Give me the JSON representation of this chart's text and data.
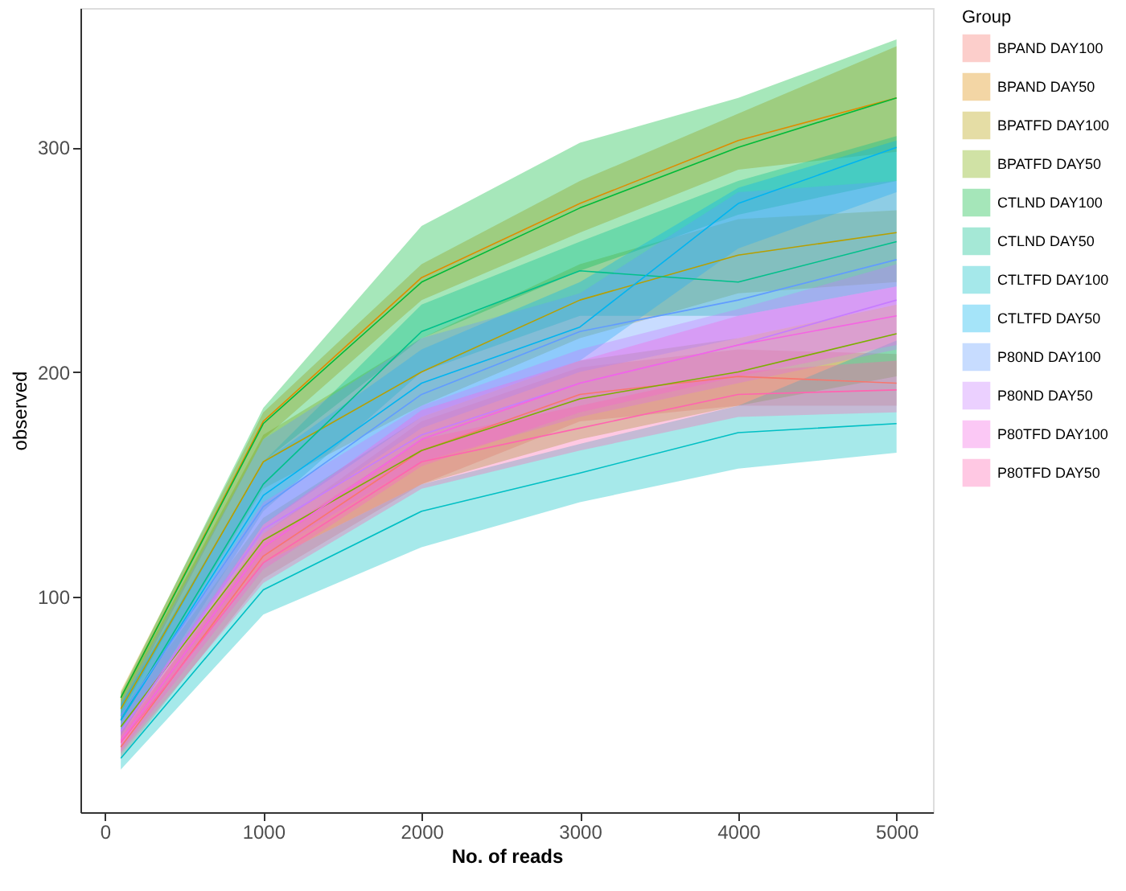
{
  "chart_data": {
    "type": "line",
    "xlabel": "No. of reads",
    "ylabel": "observed",
    "legend_title": "Group",
    "legend": "right",
    "grid": false,
    "line_style": "solid",
    "marker": "none",
    "x": [
      100,
      1000,
      2000,
      3000,
      4000,
      5000
    ],
    "xlim": [
      -155,
      5230
    ],
    "ylim": [
      4,
      362
    ],
    "xticks": [
      0,
      1000,
      2000,
      3000,
      4000,
      5000
    ],
    "yticks": [
      100,
      200,
      300
    ],
    "series": [
      {
        "name": "BPAND DAY100",
        "color": "#f8766d",
        "values": [
          33,
          118,
          165,
          190,
          198,
          195
        ],
        "lower": [
          28,
          108,
          150,
          178,
          185,
          185
        ],
        "upper": [
          38,
          128,
          178,
          202,
          210,
          208
        ]
      },
      {
        "name": "BPAND DAY50",
        "color": "#de8c00",
        "values": [
          55,
          178,
          242,
          275,
          303,
          322
        ],
        "lower": [
          50,
          170,
          232,
          262,
          290,
          298
        ],
        "upper": [
          58,
          182,
          248,
          285,
          315,
          345
        ]
      },
      {
        "name": "BPATFD DAY100",
        "color": "#b79f00",
        "values": [
          50,
          160,
          200,
          232,
          252,
          262
        ],
        "lower": [
          44,
          148,
          185,
          215,
          235,
          240
        ],
        "upper": [
          55,
          172,
          215,
          248,
          268,
          272
        ]
      },
      {
        "name": "BPATFD DAY50",
        "color": "#7cae00",
        "values": [
          42,
          125,
          165,
          188,
          200,
          217
        ],
        "lower": [
          35,
          115,
          150,
          170,
          185,
          198
        ],
        "upper": [
          48,
          135,
          180,
          205,
          215,
          230
        ]
      },
      {
        "name": "CTLND DAY100",
        "color": "#00ba38",
        "values": [
          55,
          177,
          240,
          273,
          300,
          322
        ],
        "lower": [
          48,
          160,
          215,
          245,
          270,
          285
        ],
        "upper": [
          57,
          184,
          265,
          302,
          322,
          348
        ]
      },
      {
        "name": "CTLND DAY50",
        "color": "#00c08b",
        "values": [
          45,
          150,
          218,
          245,
          240,
          258
        ],
        "lower": [
          38,
          138,
          200,
          225,
          225,
          238
        ],
        "upper": [
          52,
          160,
          230,
          258,
          285,
          305
        ]
      },
      {
        "name": "CTLTFD DAY100",
        "color": "#00bfc4",
        "values": [
          28,
          103,
          138,
          155,
          173,
          177
        ],
        "lower": [
          23,
          92,
          122,
          142,
          157,
          164
        ],
        "upper": [
          34,
          115,
          150,
          168,
          185,
          214
        ]
      },
      {
        "name": "CTLTFD DAY50",
        "color": "#00b4f0",
        "values": [
          45,
          145,
          195,
          220,
          275,
          300
        ],
        "lower": [
          38,
          132,
          180,
          205,
          255,
          280
        ],
        "upper": [
          52,
          160,
          210,
          240,
          282,
          303
        ]
      },
      {
        "name": "P80ND DAY100",
        "color": "#619cff",
        "values": [
          47,
          140,
          190,
          218,
          232,
          250
        ],
        "lower": [
          40,
          128,
          175,
          200,
          215,
          230
        ],
        "upper": [
          53,
          170,
          215,
          235,
          280,
          285
        ]
      },
      {
        "name": "P80ND DAY50",
        "color": "#c77cff",
        "values": [
          40,
          130,
          172,
          195,
          212,
          232
        ],
        "lower": [
          34,
          118,
          160,
          180,
          195,
          210
        ],
        "upper": [
          46,
          142,
          185,
          210,
          228,
          248
        ]
      },
      {
        "name": "P80TFD DAY100",
        "color": "#f564e3",
        "values": [
          36,
          122,
          170,
          195,
          212,
          225
        ],
        "lower": [
          31,
          112,
          158,
          182,
          198,
          212
        ],
        "upper": [
          41,
          132,
          183,
          205,
          225,
          238
        ]
      },
      {
        "name": "P80TFD DAY50",
        "color": "#ff64b0",
        "values": [
          35,
          115,
          160,
          175,
          190,
          192
        ],
        "lower": [
          30,
          106,
          148,
          165,
          180,
          182
        ],
        "upper": [
          40,
          124,
          170,
          185,
          200,
          205
        ]
      }
    ]
  }
}
